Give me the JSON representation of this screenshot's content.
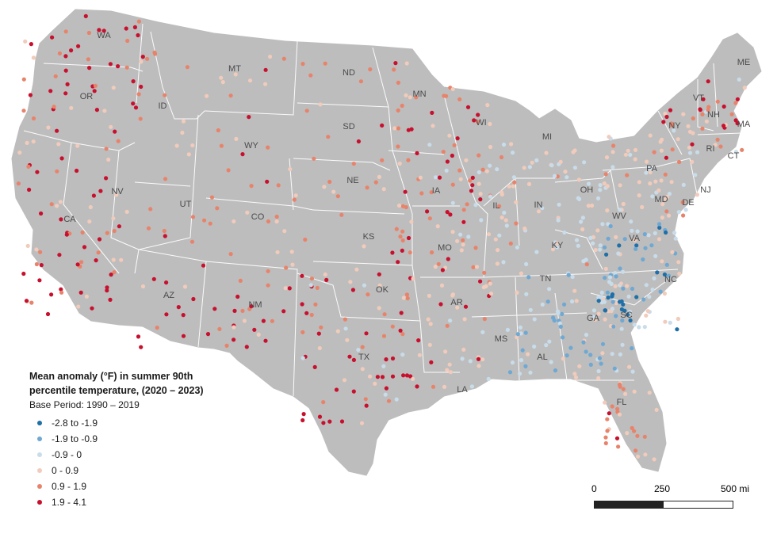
{
  "legend": {
    "title_line1": "Mean anomaly (°F) in summer 90th",
    "title_line2": "percentile temperature,  (2020 – 2023)",
    "base_period": "Base Period: 1990 – 2019",
    "items": [
      {
        "label": "-2.8 to -1.9",
        "color": "#1f6fa8"
      },
      {
        "label": "-1.9 to -0.9",
        "color": "#6ea8d3"
      },
      {
        "label": "-0.9 - 0",
        "color": "#c8dcea"
      },
      {
        "label": "0 - 0.9",
        "color": "#f1cbbb"
      },
      {
        "label": "0.9 - 1.9",
        "color": "#e8836b"
      },
      {
        "label": "1.9 - 4.1",
        "color": "#c8102e"
      }
    ]
  },
  "scale": {
    "labels": [
      "0",
      "250",
      "500 mi"
    ]
  },
  "colors": {
    "land": "#bdbdbd",
    "borders": "#ffffff"
  },
  "states": [
    "WA",
    "OR",
    "CA",
    "ID",
    "NV",
    "MT",
    "WY",
    "UT",
    "AZ",
    "CO",
    "NM",
    "ND",
    "SD",
    "NE",
    "KS",
    "OK",
    "TX",
    "MN",
    "IA",
    "MO",
    "AR",
    "LA",
    "WI",
    "IL",
    "MS",
    "MI",
    "IN",
    "KY",
    "TN",
    "AL",
    "OH",
    "GA",
    "FL",
    "SC",
    "NC",
    "VA",
    "WV",
    "PA",
    "NY",
    "VT",
    "NH",
    "ME",
    "MA",
    "RI",
    "CT",
    "NJ",
    "DE",
    "MD"
  ]
}
